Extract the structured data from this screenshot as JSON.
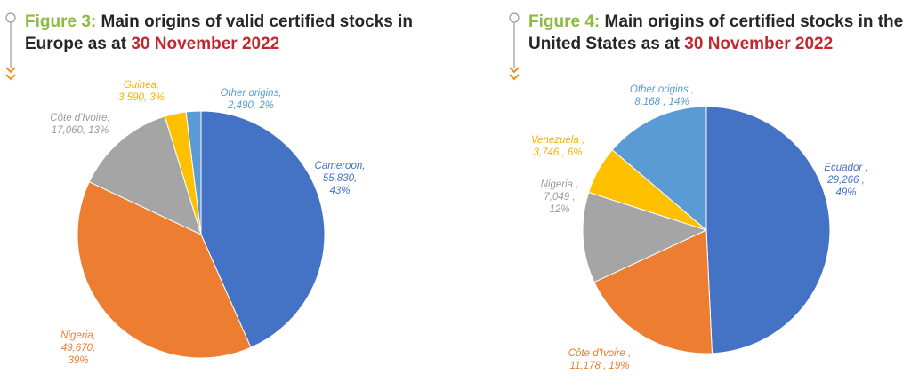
{
  "charts": [
    {
      "figure_label": "Figure 3:",
      "title_part1": " Main origins of valid certified stocks in",
      "title_part2": "Europe as at ",
      "title_date": "30 November 2022"
    },
    {
      "figure_label": "Figure 4:",
      "title_part1": " Main origins of certified stocks in the",
      "title_part2": "United States as at ",
      "title_date": "30 November 2022"
    }
  ],
  "chart_data": [
    {
      "type": "pie",
      "title": "Figure 3: Main origins of valid certified stocks in Europe as at 30 November 2022",
      "slices": [
        {
          "label": "Cameroon",
          "value": 55830,
          "percent": 43,
          "color": "#4472c4",
          "label_lines": [
            "Cameroon,",
            "55,830,",
            "43%"
          ]
        },
        {
          "label": "Nigeria",
          "value": 49670,
          "percent": 39,
          "color": "#ed7d31",
          "label_lines": [
            "Nigeria,",
            "49,670,",
            "39%"
          ]
        },
        {
          "label": "Côte d'Ivoire",
          "value": 17060,
          "percent": 13,
          "color": "#a5a5a5",
          "label_lines": [
            "Côte d'Ivoire,",
            "17,060, 13%"
          ]
        },
        {
          "label": "Guinea",
          "value": 3590,
          "percent": 3,
          "color": "#ffc000",
          "label_lines": [
            "Guinea,",
            "3,590, 3%"
          ]
        },
        {
          "label": "Other origins",
          "value": 2490,
          "percent": 2,
          "color": "#5b9bd5",
          "label_lines": [
            "Other origins,",
            "2,490, 2%"
          ]
        }
      ]
    },
    {
      "type": "pie",
      "title": "Figure 4: Main origins of certified stocks in the United States as at 30 November 2022",
      "slices": [
        {
          "label": "Ecuador",
          "value": 29266,
          "percent": 49,
          "color": "#4472c4",
          "label_lines": [
            "Ecuador ,",
            "29,266 ,",
            "49%"
          ]
        },
        {
          "label": "Côte d'Ivoire",
          "value": 11178,
          "percent": 19,
          "color": "#ed7d31",
          "label_lines": [
            "Côte d'Ivoire ,",
            "11,178 , 19%"
          ]
        },
        {
          "label": "Nigeria",
          "value": 7049,
          "percent": 12,
          "color": "#a5a5a5",
          "label_lines": [
            "Nigeria ,",
            "7,049 ,",
            "12%"
          ]
        },
        {
          "label": "Venezuela",
          "value": 3746,
          "percent": 6,
          "color": "#ffc000",
          "label_lines": [
            "Venezuela ,",
            "3,746 , 6%"
          ]
        },
        {
          "label": "Other origins",
          "value": 8168,
          "percent": 14,
          "color": "#5b9bd5",
          "label_lines": [
            "Other origins ,",
            "8,168 , 14%"
          ]
        }
      ]
    }
  ]
}
